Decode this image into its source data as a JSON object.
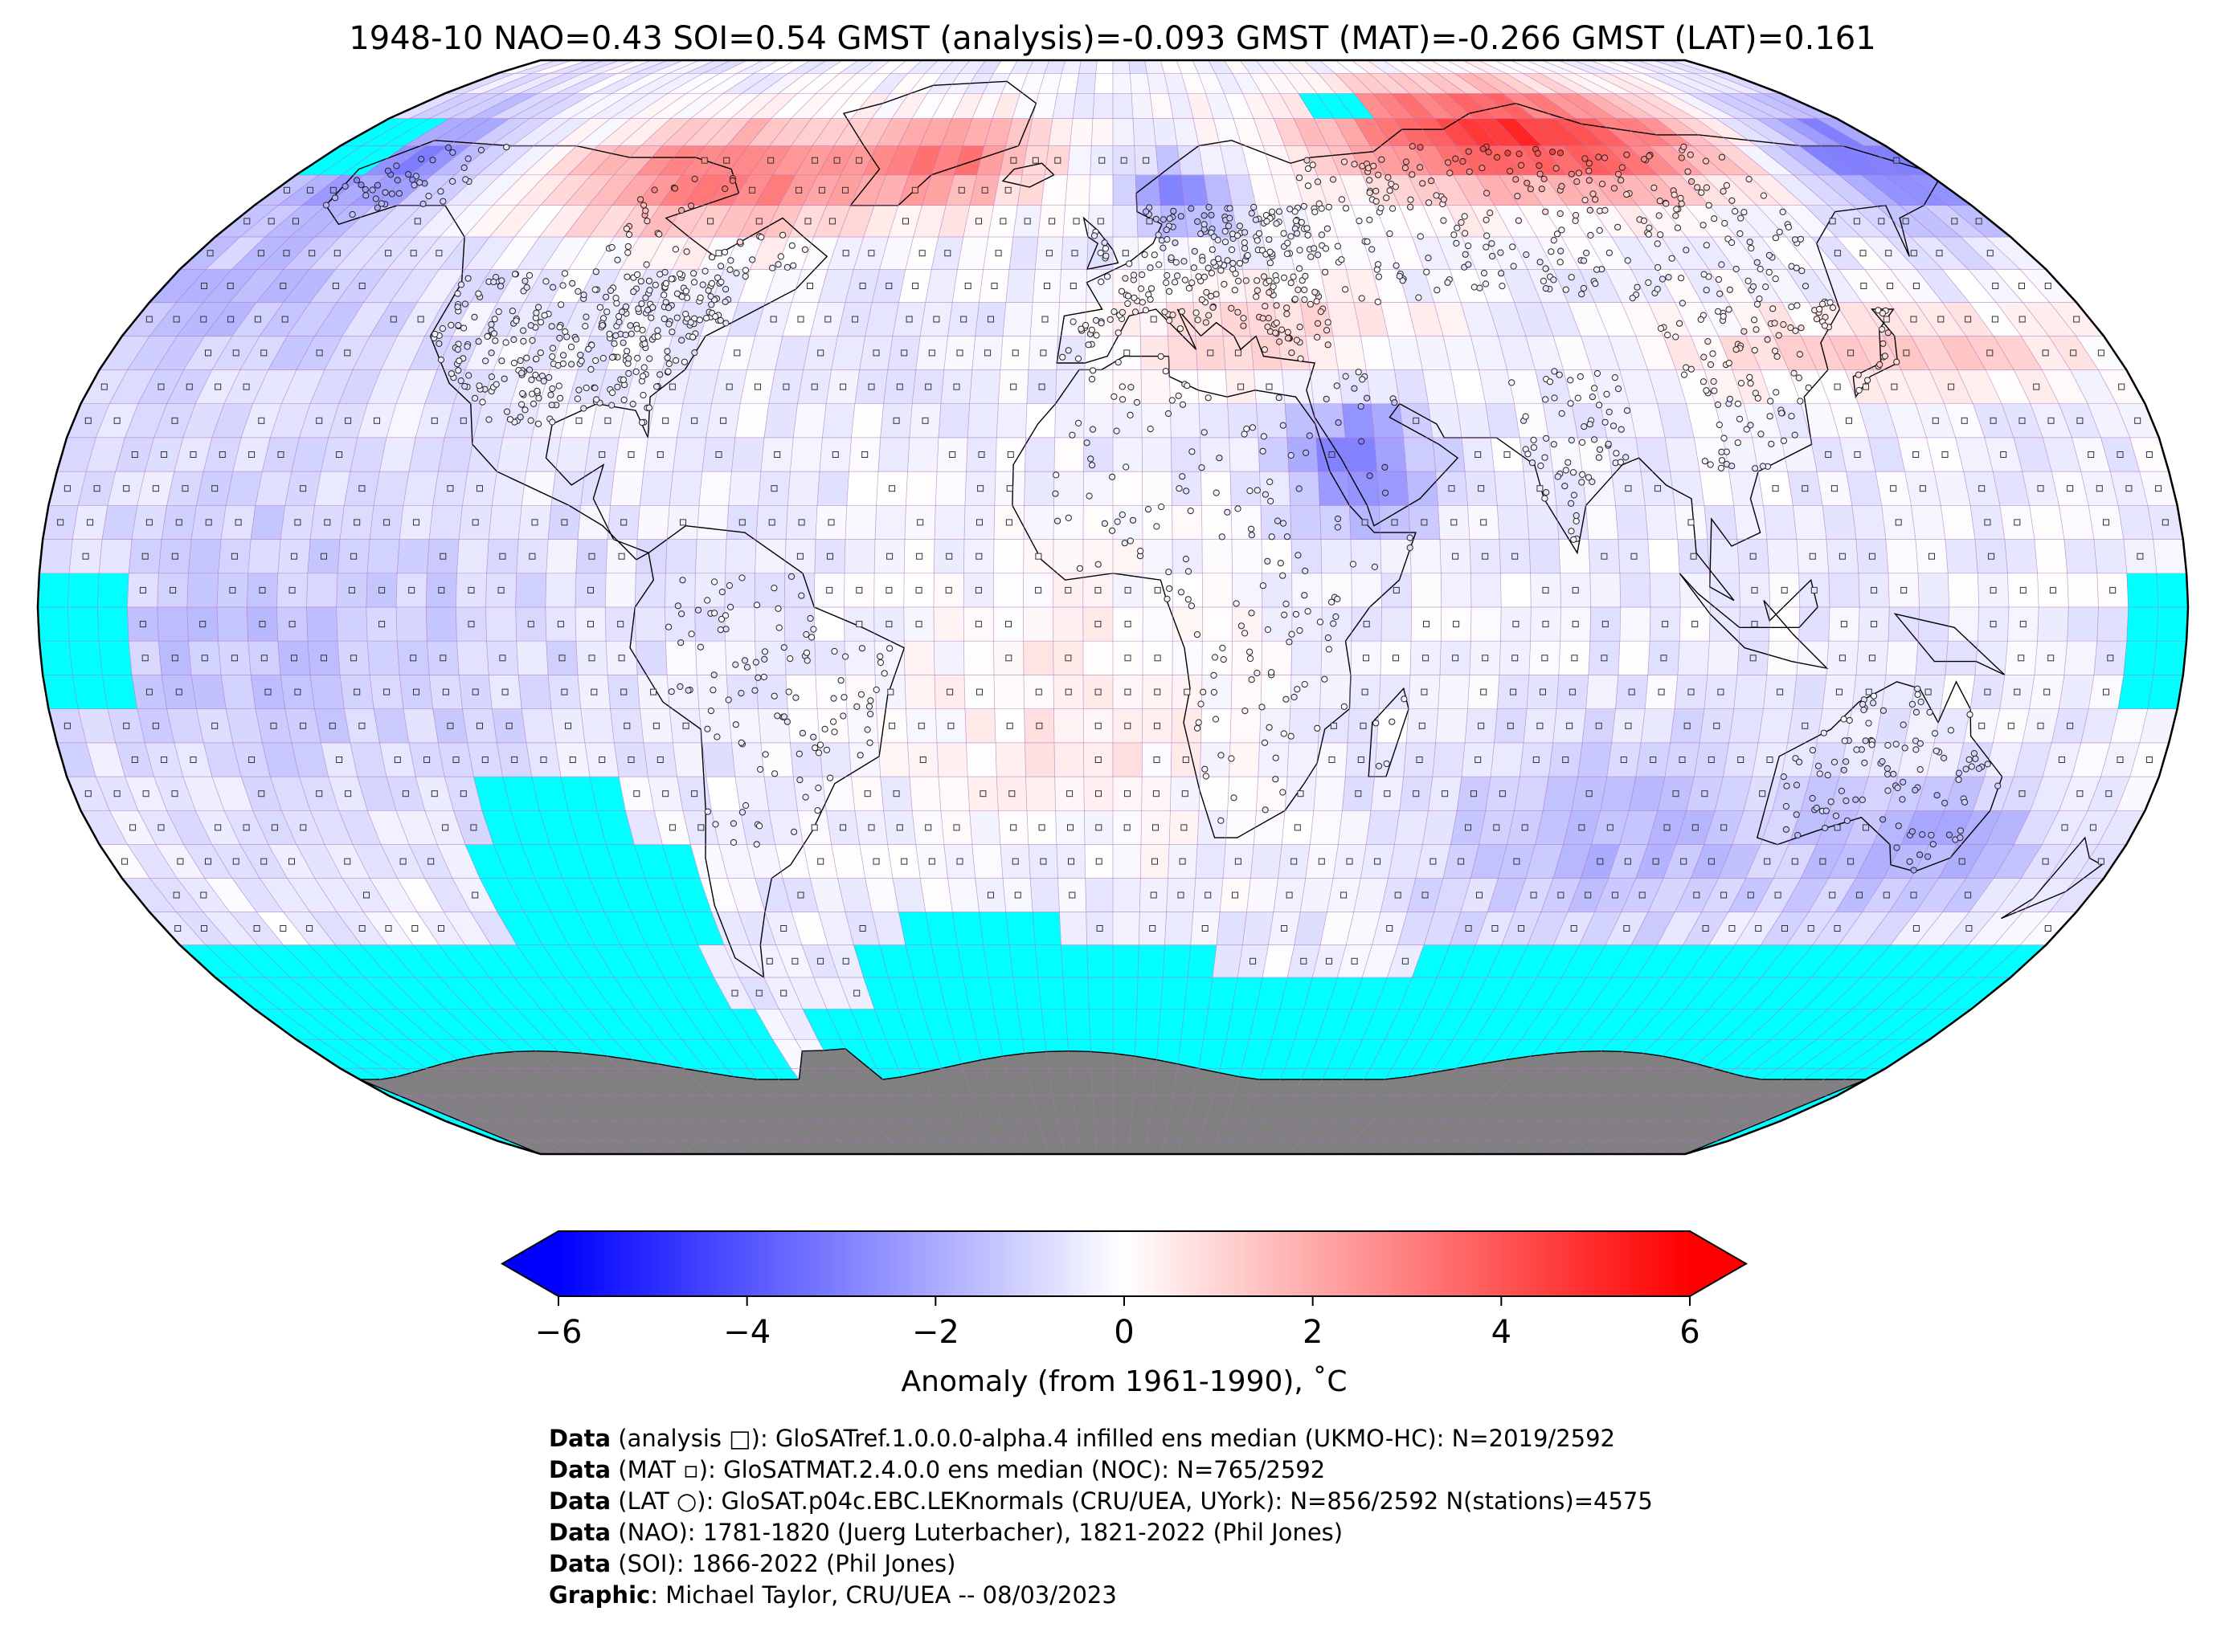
{
  "title": "1948-10 NAO=0.43 SOI=0.54 GMST (analysis)=-0.093 GMST (MAT)=-0.266 GMST (LAT)=0.161",
  "map": {
    "projection": "Robinson",
    "grid_resolution_deg": 5,
    "missing_data_color": "#00ffff",
    "land_mask_color": "#808080",
    "grid_line_color": "#b070c0",
    "markers": {
      "analysis": "square",
      "MAT": "small-square",
      "LAT": "circle"
    }
  },
  "colorbar": {
    "cmap": "bwr",
    "vmin": -6,
    "vmax": 6,
    "extend": "both",
    "ticks": [
      "−6",
      "−4",
      "−2",
      "0",
      "2",
      "4",
      "6"
    ],
    "tick_values": [
      -6,
      -4,
      -2,
      0,
      2,
      4,
      6
    ],
    "label": "Anomaly (from 1961-1990), ˚C",
    "colors": {
      "low": "#0000ff",
      "mid": "#ffffff",
      "high": "#ff0000"
    }
  },
  "credits": [
    {
      "bold": "Data",
      "text": " (analysis □): GloSATref.1.0.0.0-alpha.4 infilled ens median (UKMO-HC): N=2019/2592"
    },
    {
      "bold": "Data",
      "text": " (MAT ▫): GloSATMAT.2.4.0.0 ens median (NOC): N=765/2592"
    },
    {
      "bold": "Data",
      "text": " (LAT ○): GloSAT.p04c.EBC.LEKnormals (CRU/UEA, UYork): N=856/2592 N(stations)=4575"
    },
    {
      "bold": "Data",
      "text": " (NAO): 1781-1820 (Juerg Luterbacher), 1821-2022 (Phil Jones)"
    },
    {
      "bold": "Data",
      "text": " (SOI): 1866-2022 (Phil Jones)"
    },
    {
      "bold": "Graphic",
      "text": ": Michael Taylor, CRU/UEA -- 08/03/2023"
    }
  ]
}
